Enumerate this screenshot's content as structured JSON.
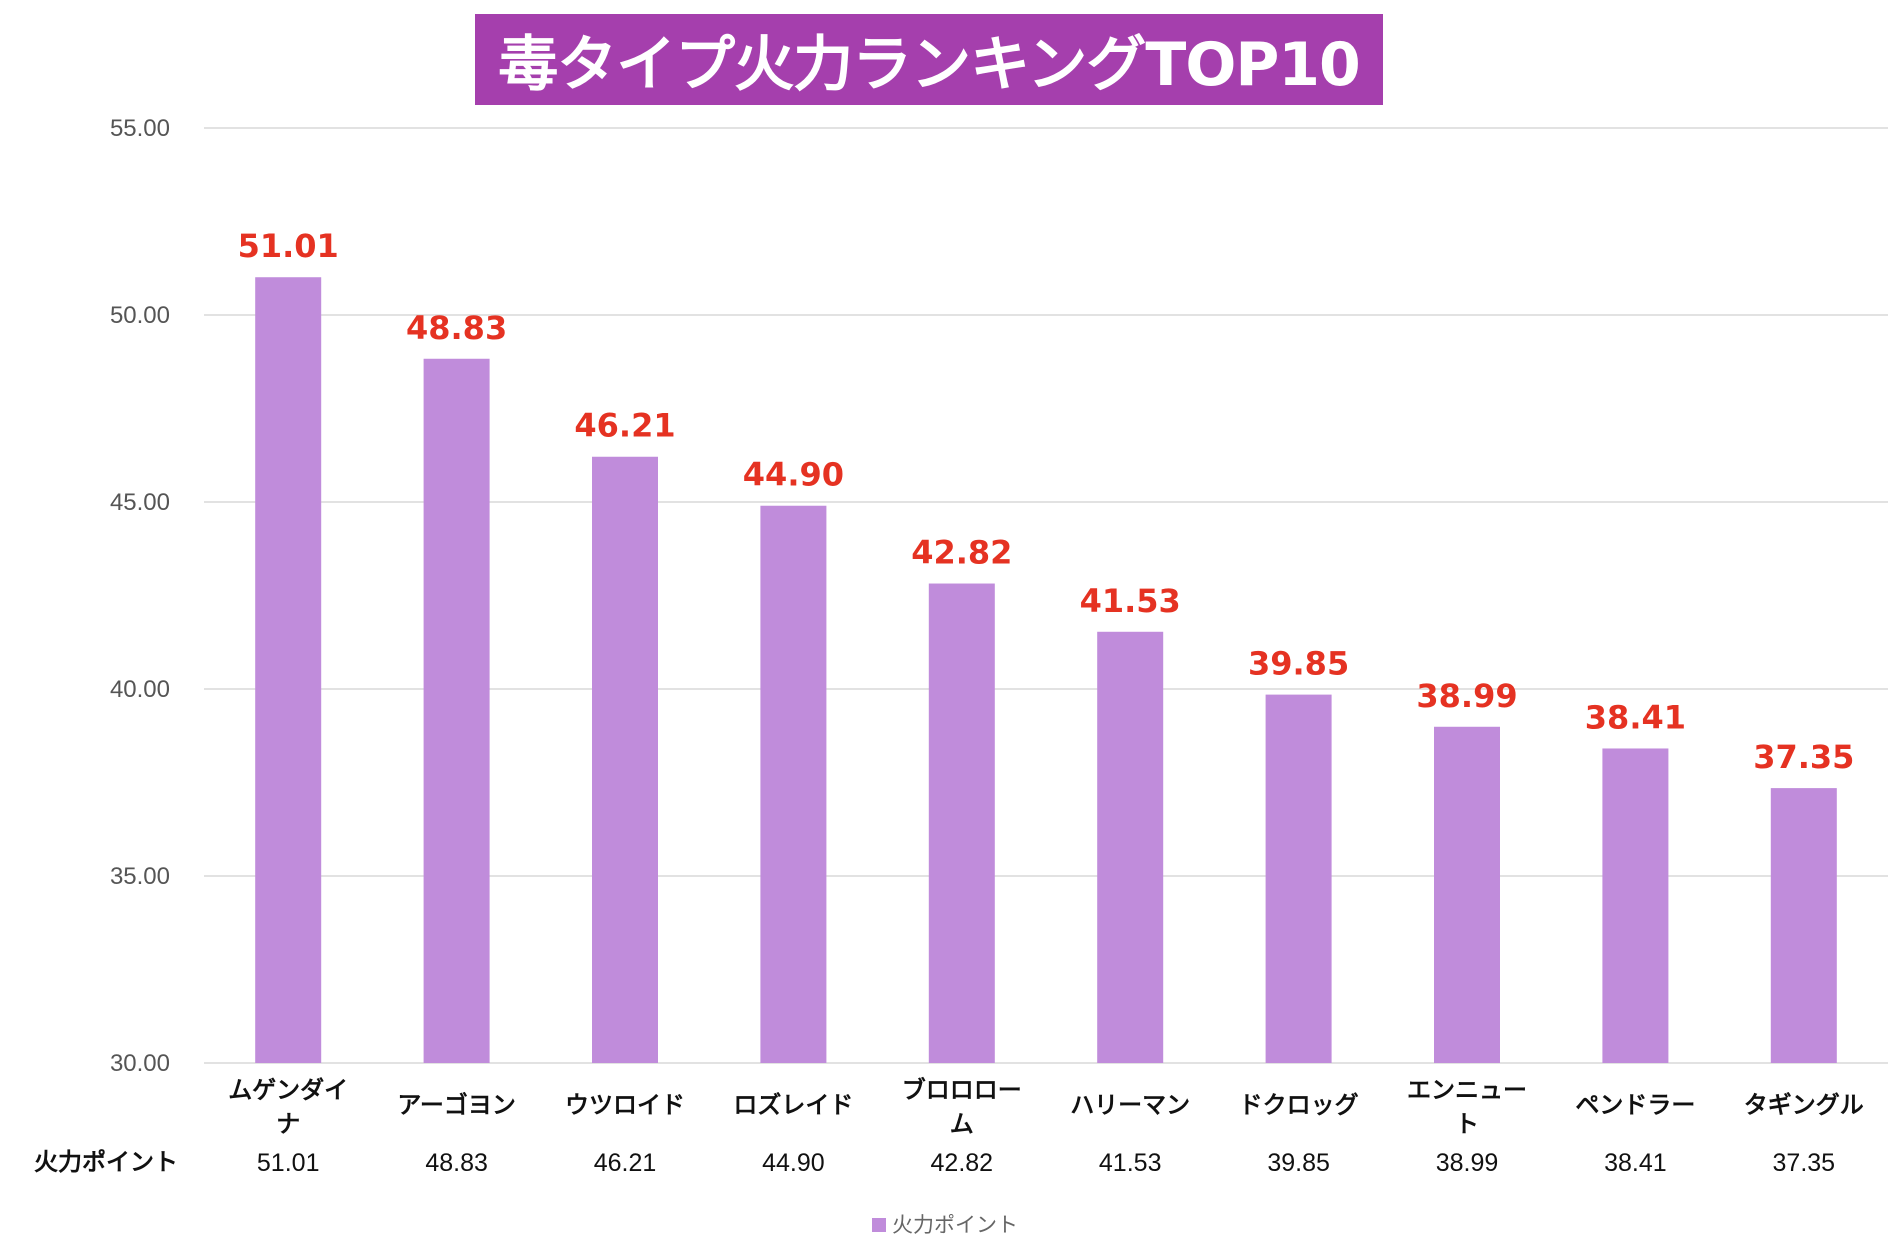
{
  "chart_data": {
    "type": "bar",
    "title": "毒タイプ火力ランキングTOP10",
    "categories": [
      "ムゲンダイナ",
      "アーゴヨン",
      "ウツロイド",
      "ロズレイド",
      "ブロロローム",
      "ハリーマン",
      "ドクロッグ",
      "エンニュート",
      "ペンドラー",
      "タギングル"
    ],
    "series": [
      {
        "name": "火力ポイント",
        "values": [
          51.01,
          48.83,
          46.21,
          44.9,
          42.82,
          41.53,
          39.85,
          38.99,
          38.41,
          37.35
        ]
      }
    ],
    "data_labels": [
      "51.01",
      "48.83",
      "46.21",
      "44.90",
      "42.82",
      "41.53",
      "39.85",
      "38.99",
      "38.41",
      "37.35"
    ],
    "ylim": [
      30,
      55
    ],
    "yticks": [
      "30.00",
      "35.00",
      "40.00",
      "45.00",
      "50.00",
      "55.00"
    ],
    "grid": true,
    "legend": "bottom",
    "data_table": true
  },
  "colors": {
    "bar": "#c08cdb",
    "title_bg": "#a53fad",
    "title_text": "#ffffff",
    "data_label": "#e53222",
    "grid": "#d9d9d9"
  }
}
